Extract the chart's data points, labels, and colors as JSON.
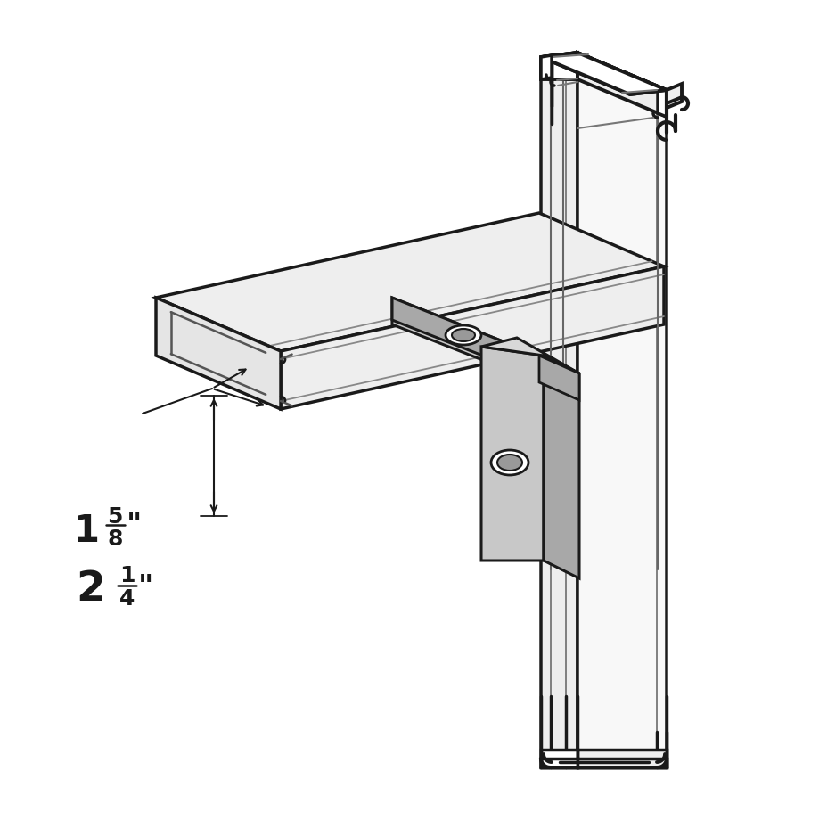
{
  "bg": "#ffffff",
  "lc": "#1a1a1a",
  "gray_face": "#c8c8c8",
  "gray_dark": "#a8a8a8",
  "gray_light": "#d8d8d8",
  "white_face": "#f8f8f8",
  "off_white": "#eeeeee",
  "dim1_text": "1",
  "dim1_frac_n": "5",
  "dim1_frac_d": "8",
  "dim2_text": "2",
  "dim2_frac_n": "1",
  "dim2_frac_d": "4",
  "inch_sym": "\""
}
